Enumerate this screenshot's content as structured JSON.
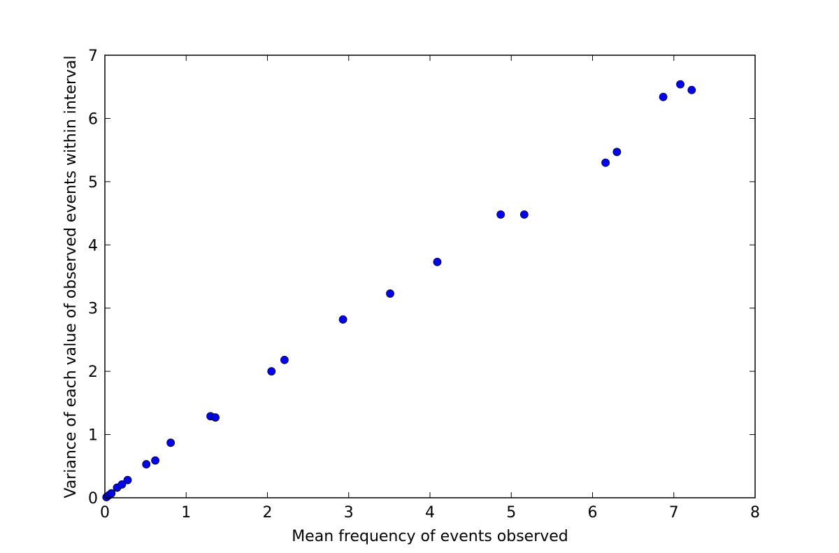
{
  "chart_data": {
    "type": "scatter",
    "title": "",
    "xlabel": "Mean frequency of events observed",
    "ylabel": "Variance of each value of observed events within interval",
    "xlim": [
      0,
      8
    ],
    "ylim": [
      0,
      7
    ],
    "xticks": [
      "0",
      "1",
      "2",
      "3",
      "4",
      "5",
      "6",
      "7",
      "8"
    ],
    "yticks": [
      "0",
      "1",
      "2",
      "3",
      "4",
      "5",
      "6",
      "7"
    ],
    "grid": false,
    "marker_color": "#0000ff",
    "marker_edge_color": "#000000",
    "series": [
      {
        "x": [
          0.02,
          0.05,
          0.08,
          0.15,
          0.21,
          0.28,
          0.51,
          0.62,
          0.81,
          1.3,
          1.36,
          2.05,
          2.21,
          2.93,
          3.51,
          4.09,
          4.87,
          5.16,
          6.16,
          6.3,
          6.87,
          7.08,
          7.22
        ],
        "y": [
          0.01,
          0.04,
          0.07,
          0.16,
          0.21,
          0.28,
          0.53,
          0.59,
          0.87,
          1.29,
          1.27,
          2.0,
          2.18,
          2.82,
          3.23,
          3.73,
          4.48,
          4.48,
          5.3,
          5.47,
          6.34,
          6.54,
          6.45
        ]
      }
    ]
  }
}
